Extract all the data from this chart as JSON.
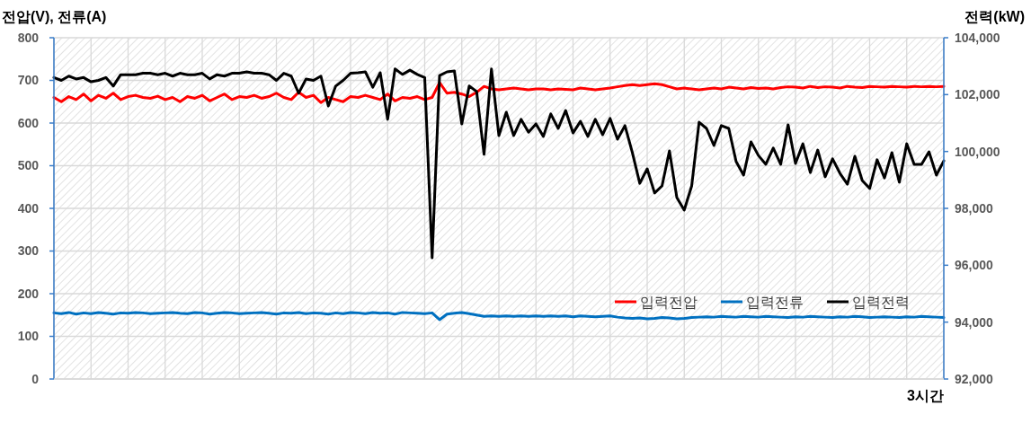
{
  "chart_data": {
    "type": "line",
    "ylabel": "전압(V), 전류(A)",
    "y2label": "전력(kW)",
    "annotations": [
      "3시간"
    ],
    "categories": [
      null,
      null,
      null,
      null,
      null,
      null,
      null,
      null,
      null,
      null,
      null,
      null,
      null,
      null,
      null,
      null,
      null,
      null,
      null,
      null,
      null,
      null,
      null,
      null,
      null,
      null,
      null,
      null,
      null,
      null,
      null,
      null,
      null,
      null,
      null,
      null,
      null,
      null,
      null,
      null,
      null,
      null,
      null,
      null,
      null,
      null,
      null,
      null,
      null,
      null,
      null,
      null,
      null,
      null,
      null,
      null,
      null,
      null,
      null,
      null,
      null,
      null,
      null,
      null,
      null,
      null,
      null,
      null,
      null,
      null,
      null,
      null,
      null,
      null,
      null,
      null,
      null,
      null,
      null,
      null,
      null,
      null,
      null,
      null,
      null,
      null,
      null,
      null,
      null,
      null,
      null,
      null,
      null,
      null,
      null,
      null,
      null,
      null,
      null,
      null,
      null,
      null,
      null,
      null,
      null,
      null,
      null,
      null,
      null,
      null,
      null,
      null,
      null,
      null,
      null,
      null,
      null,
      null,
      null,
      null,
      null
    ],
    "ylim": [
      0,
      800
    ],
    "yticks": [
      0,
      100,
      200,
      300,
      400,
      500,
      600,
      700,
      800
    ],
    "y2lim": [
      92000,
      104000
    ],
    "y2ticks": [
      {
        "value": 92000,
        "label": "92,000"
      },
      {
        "value": 94000,
        "label": "94,000"
      },
      {
        "value": 96000,
        "label": "96,000"
      },
      {
        "value": 98000,
        "label": "98,000"
      },
      {
        "value": 100000,
        "label": "100,000"
      },
      {
        "value": 102000,
        "label": "102,000"
      },
      {
        "value": 104000,
        "label": "104,000"
      }
    ],
    "grid": true,
    "legend": "bottom right",
    "marker": "none",
    "line_style": "solid",
    "series": [
      {
        "name": "입력전압",
        "color": "#ff0000",
        "values": [
          660,
          650,
          662,
          655,
          668,
          652,
          665,
          658,
          670,
          655,
          662,
          665,
          660,
          658,
          663,
          655,
          660,
          650,
          662,
          658,
          665,
          652,
          660,
          668,
          655,
          662,
          660,
          665,
          658,
          662,
          670,
          660,
          655,
          672,
          660,
          665,
          648,
          660,
          655,
          650,
          662,
          660,
          665,
          660,
          655,
          668,
          652,
          660,
          658,
          662,
          655,
          660,
          695,
          670,
          672,
          668,
          662,
          672,
          686,
          680,
          678,
          680,
          682,
          680,
          678,
          680,
          680,
          678,
          680,
          679,
          678,
          682,
          680,
          678,
          680,
          682,
          685,
          688,
          690,
          688,
          690,
          692,
          690,
          685,
          680,
          682,
          680,
          678,
          680,
          682,
          680,
          684,
          682,
          680,
          683,
          681,
          682,
          680,
          683,
          685,
          684,
          682,
          686,
          683,
          685,
          684,
          682,
          686,
          684,
          683,
          686,
          685,
          684,
          686,
          685,
          684,
          686,
          685,
          686,
          685,
          686
        ]
      },
      {
        "name": "입력전류",
        "color": "#0070c0",
        "values": [
          155,
          153,
          156,
          152,
          155,
          153,
          156,
          154,
          152,
          155,
          154,
          156,
          155,
          153,
          154,
          155,
          156,
          154,
          153,
          156,
          155,
          152,
          154,
          156,
          155,
          153,
          154,
          155,
          156,
          154,
          152,
          155,
          154,
          156,
          153,
          155,
          154,
          152,
          155,
          153,
          156,
          155,
          153,
          156,
          154,
          155,
          152,
          156,
          155,
          154,
          153,
          155,
          139,
          152,
          154,
          156,
          153,
          150,
          147,
          148,
          147,
          148,
          147,
          148,
          147,
          148,
          147,
          148,
          147,
          148,
          146,
          148,
          147,
          146,
          147,
          148,
          145,
          143,
          142,
          143,
          141,
          142,
          144,
          143,
          141,
          142,
          144,
          145,
          146,
          145,
          147,
          146,
          145,
          147,
          146,
          145,
          147,
          146,
          145,
          144,
          146,
          145,
          147,
          146,
          145,
          144,
          146,
          145,
          147,
          146,
          144,
          145,
          146,
          145,
          144,
          146,
          145,
          147,
          146,
          145,
          144
        ]
      },
      {
        "name": "입력전력",
        "color": "#000000",
        "axis": "y2",
        "values": [
          102600,
          102500,
          102650,
          102550,
          102600,
          102450,
          102500,
          102600,
          102300,
          102700,
          102700,
          102700,
          102750,
          102750,
          102700,
          102750,
          102650,
          102750,
          102700,
          102700,
          102750,
          102550,
          102700,
          102650,
          102750,
          102750,
          102800,
          102750,
          102750,
          102700,
          102500,
          102750,
          102650,
          102050,
          102550,
          102500,
          102650,
          101600,
          102300,
          102500,
          102750,
          102770,
          102800,
          102260,
          102770,
          101130,
          102900,
          102710,
          102860,
          102710,
          102600,
          96260,
          102670,
          102800,
          102830,
          100970,
          102300,
          102110,
          99900,
          102900,
          100560,
          101380,
          100560,
          101130,
          100680,
          100970,
          100530,
          101320,
          100810,
          101440,
          100650,
          101060,
          100530,
          101130,
          100590,
          101160,
          100430,
          100910,
          99960,
          98880,
          99390,
          98540,
          98790,
          100020,
          98380,
          97940,
          98790,
          101030,
          100810,
          100210,
          100910,
          100810,
          99640,
          99170,
          100340,
          99860,
          99550,
          100120,
          99550,
          100940,
          99580,
          100270,
          99260,
          100050,
          99110,
          99740,
          99230,
          98850,
          99830,
          98980,
          98700,
          99710,
          99070,
          99960,
          98920,
          100270,
          99550,
          99550,
          99990,
          99170,
          99670
        ]
      }
    ]
  }
}
